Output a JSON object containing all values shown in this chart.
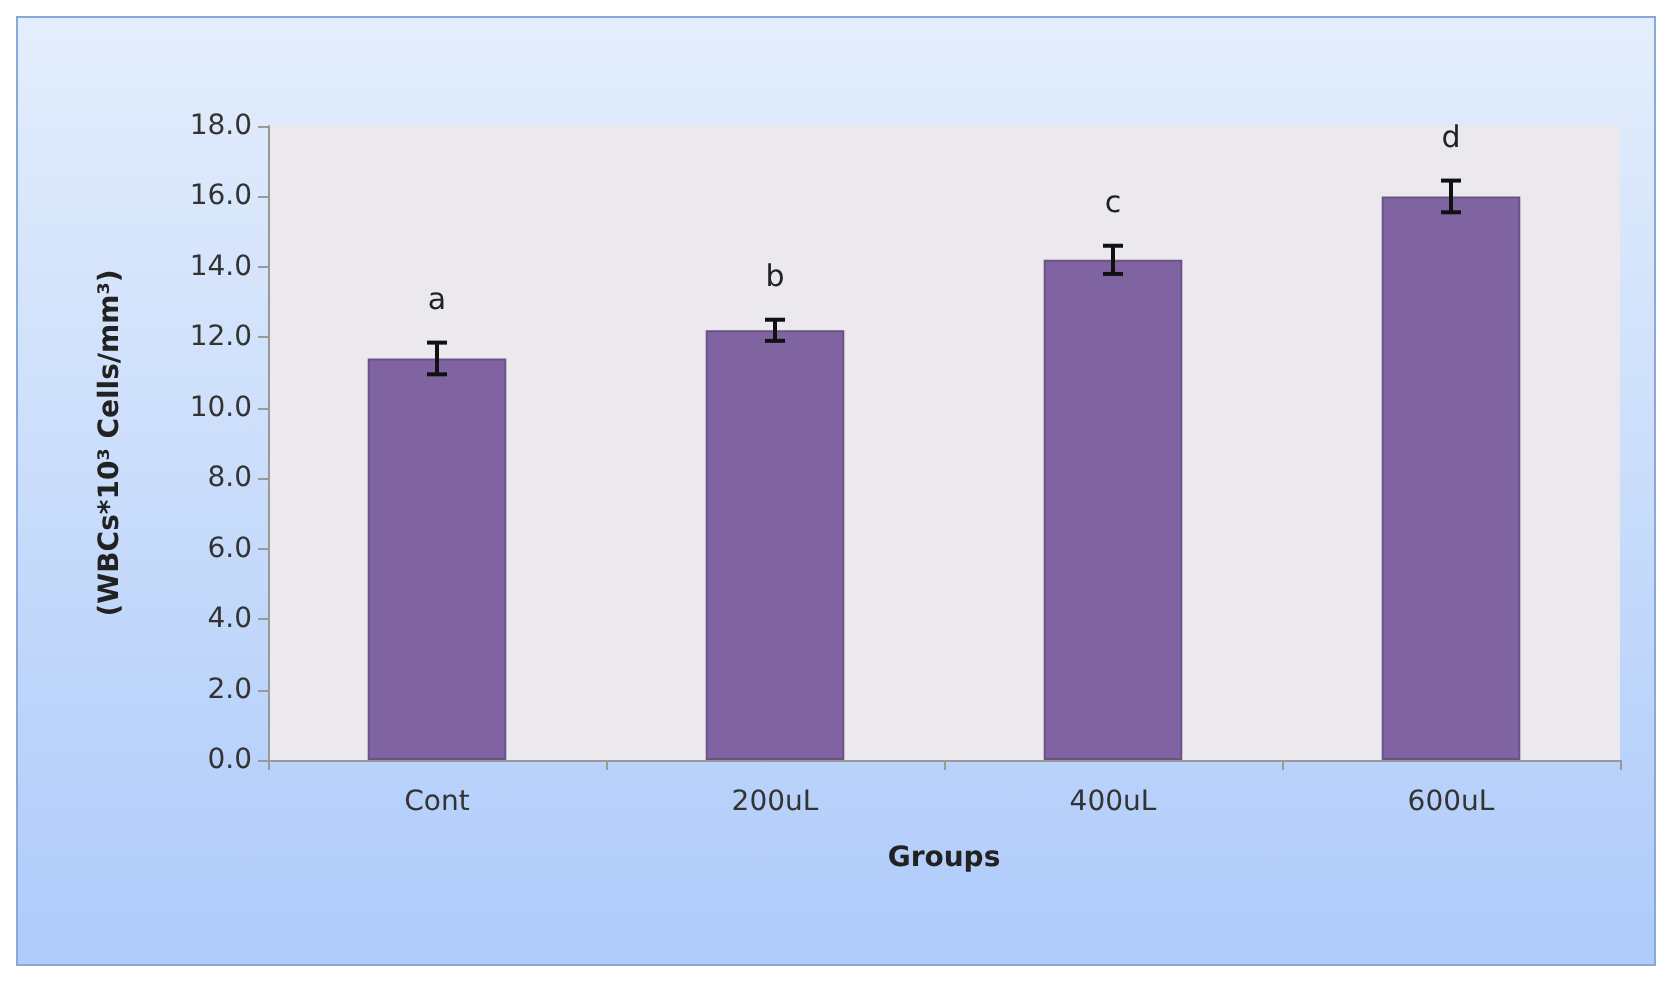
{
  "chart_data": {
    "type": "bar",
    "categories": [
      "Cont",
      "200uL",
      "400uL",
      "600uL"
    ],
    "values": [
      11.4,
      12.2,
      14.2,
      16.0
    ],
    "errors": [
      0.45,
      0.3,
      0.4,
      0.45
    ],
    "color": "#8064a2",
    "xlabel": "Groups",
    "ylabel": "(WBCs*10³ Cells/mm³)",
    "ylim": [
      0,
      18
    ],
    "yticks": [
      {
        "value": 0,
        "label": "0.0"
      },
      {
        "value": 2,
        "label": "2.0"
      },
      {
        "value": 4,
        "label": "4.0"
      },
      {
        "value": 6,
        "label": "6.0"
      },
      {
        "value": 8,
        "label": "8.0"
      },
      {
        "value": 10,
        "label": "10.0"
      },
      {
        "value": 12,
        "label": "12.0"
      },
      {
        "value": 14,
        "label": "14.0"
      },
      {
        "value": 16,
        "label": "16.0"
      },
      {
        "value": 18,
        "label": "18.0"
      }
    ],
    "annotations": [
      "a",
      "b",
      "c",
      "d"
    ],
    "grid": false
  }
}
